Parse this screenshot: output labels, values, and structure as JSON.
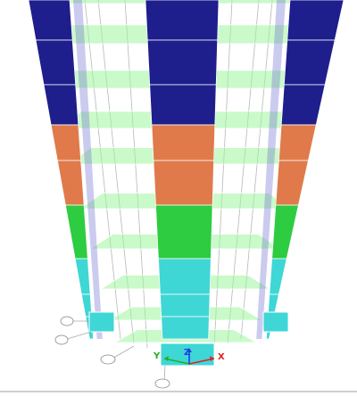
{
  "viewport": {
    "background": "#ffffff",
    "colors": {
      "story_band_top": "#1e1e8c",
      "story_band_upper": "#e07a4a",
      "story_band_middle": "#2ecc40",
      "story_band_base": "#3fd6d6",
      "floor_slab": "#9ef59e",
      "grid_line": "#b8b8b8"
    },
    "grid_bubbles": [
      {
        "label": "",
        "icon": "grid-bubble-icon"
      },
      {
        "label": "",
        "icon": "grid-bubble-icon"
      },
      {
        "label": "",
        "icon": "grid-bubble-icon"
      },
      {
        "label": "",
        "icon": "grid-bubble-icon"
      }
    ]
  },
  "axes": {
    "x_label": "X",
    "y_label": "Y",
    "z_label": "Z",
    "x_color": "#e02020",
    "y_color": "#20b020",
    "z_color": "#2040e0"
  }
}
